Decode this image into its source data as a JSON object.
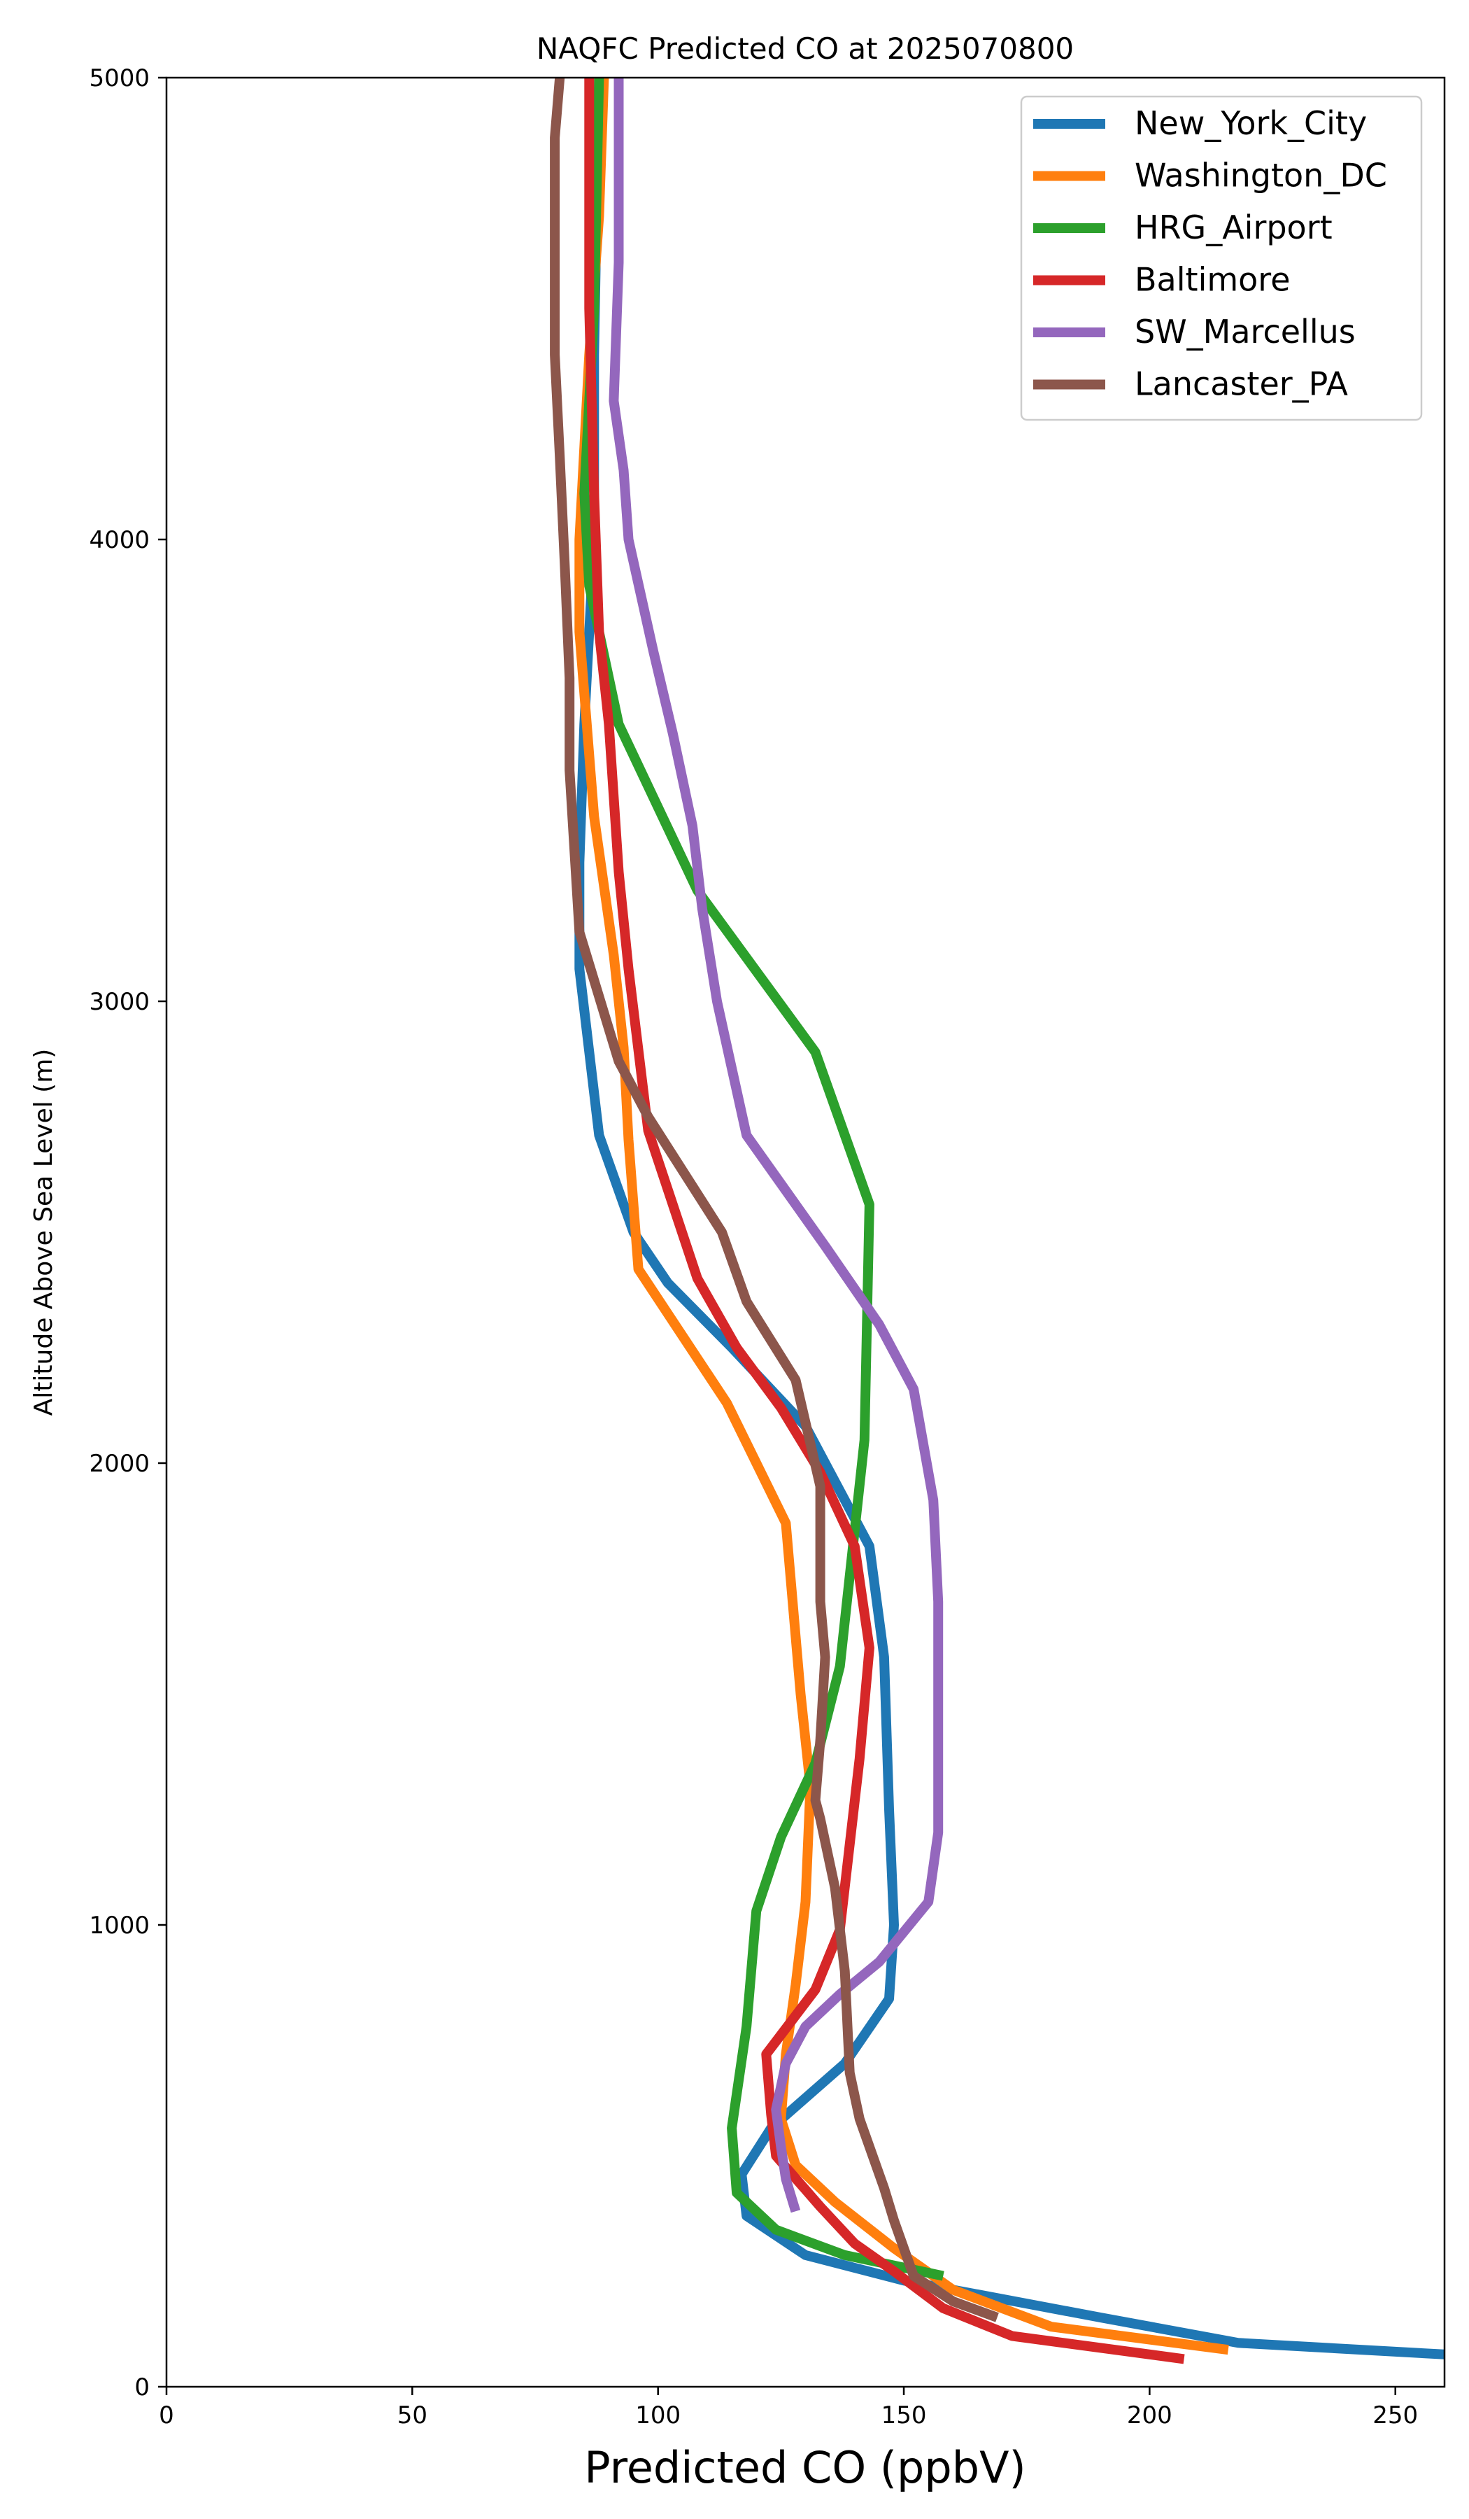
{
  "chart_data": {
    "type": "line",
    "title": "NAQFC Predicted CO at 2025070800",
    "xlabel": "Predicted CO (ppbV)",
    "ylabel": "Altitude Above Sea Level (m)",
    "xlim": [
      0,
      260
    ],
    "ylim": [
      0,
      5000
    ],
    "xticks": [
      "0",
      "50",
      "100",
      "150",
      "200",
      "250"
    ],
    "yticks": [
      "0",
      "1000",
      "2000",
      "3000",
      "4000",
      "5000"
    ],
    "grid": false,
    "legend_position": "top-right",
    "series": [
      {
        "name": "New_York_City",
        "color": "#1f77b4",
        "points": [
          [
            260,
            70
          ],
          [
            218,
            95
          ],
          [
            190,
            150
          ],
          [
            150,
            230
          ],
          [
            130,
            285
          ],
          [
            118,
            370
          ],
          [
            117,
            460
          ],
          [
            123,
            560
          ],
          [
            138,
            700
          ],
          [
            147,
            840
          ],
          [
            148,
            1000
          ],
          [
            147,
            1250
          ],
          [
            146,
            1580
          ],
          [
            143,
            1820
          ],
          [
            130,
            2080
          ],
          [
            115,
            2250
          ],
          [
            102,
            2390
          ],
          [
            95,
            2500
          ],
          [
            88,
            2710
          ],
          [
            84,
            3070
          ],
          [
            84,
            3300
          ],
          [
            85,
            3600
          ],
          [
            87,
            4000
          ],
          [
            87,
            4400
          ],
          [
            88,
            5000
          ]
        ]
      },
      {
        "name": "Washington_DC",
        "color": "#ff7f0e",
        "points": [
          [
            216,
            80
          ],
          [
            180,
            130
          ],
          [
            160,
            210
          ],
          [
            148,
            300
          ],
          [
            136,
            400
          ],
          [
            128,
            480
          ],
          [
            125,
            580
          ],
          [
            126,
            720
          ],
          [
            128,
            870
          ],
          [
            130,
            1050
          ],
          [
            131,
            1300
          ],
          [
            129,
            1500
          ],
          [
            126,
            1870
          ],
          [
            114,
            2130
          ],
          [
            96,
            2420
          ],
          [
            94,
            2700
          ],
          [
            93,
            2900
          ],
          [
            91,
            3100
          ],
          [
            87,
            3400
          ],
          [
            84,
            3800
          ],
          [
            84,
            4000
          ],
          [
            86,
            4400
          ],
          [
            88,
            4700
          ],
          [
            89,
            5000
          ]
        ]
      },
      {
        "name": "HRG_Airport",
        "color": "#2ca02c",
        "points": [
          [
            158,
            240
          ],
          [
            138,
            285
          ],
          [
            124,
            340
          ],
          [
            116,
            420
          ],
          [
            115,
            560
          ],
          [
            118,
            780
          ],
          [
            120,
            1030
          ],
          [
            125,
            1190
          ],
          [
            132,
            1350
          ],
          [
            137,
            1560
          ],
          [
            142,
            2050
          ],
          [
            143,
            2560
          ],
          [
            132,
            2890
          ],
          [
            108,
            3240
          ],
          [
            92,
            3600
          ],
          [
            86,
            3900
          ],
          [
            85,
            4100
          ],
          [
            87,
            4500
          ],
          [
            88,
            5000
          ]
        ]
      },
      {
        "name": "Baltimore",
        "color": "#d62728",
        "points": [
          [
            207,
            60
          ],
          [
            172,
            110
          ],
          [
            158,
            170
          ],
          [
            148,
            250
          ],
          [
            140,
            310
          ],
          [
            133,
            390
          ],
          [
            124,
            500
          ],
          [
            123,
            590
          ],
          [
            122,
            720
          ],
          [
            132,
            860
          ],
          [
            137,
            990
          ],
          [
            141,
            1360
          ],
          [
            143,
            1600
          ],
          [
            140,
            1820
          ],
          [
            133,
            1980
          ],
          [
            125,
            2120
          ],
          [
            116,
            2250
          ],
          [
            108,
            2400
          ],
          [
            98,
            2720
          ],
          [
            94,
            3070
          ],
          [
            92,
            3280
          ],
          [
            90,
            3600
          ],
          [
            88,
            3800
          ],
          [
            87,
            4100
          ],
          [
            86,
            4500
          ],
          [
            86,
            5000
          ]
        ]
      },
      {
        "name": "SW_Marcellus",
        "color": "#9467bd",
        "points": [
          [
            128,
            380
          ],
          [
            126,
            450
          ],
          [
            125,
            520
          ],
          [
            124,
            600
          ],
          [
            125,
            650
          ],
          [
            126,
            700
          ],
          [
            130,
            780
          ],
          [
            137,
            850
          ],
          [
            145,
            920
          ],
          [
            155,
            1050
          ],
          [
            157,
            1200
          ],
          [
            157,
            1350
          ],
          [
            157,
            1500
          ],
          [
            157,
            1700
          ],
          [
            156,
            1920
          ],
          [
            152,
            2160
          ],
          [
            145,
            2300
          ],
          [
            134,
            2470
          ],
          [
            118,
            2710
          ],
          [
            112,
            3000
          ],
          [
            109,
            3200
          ],
          [
            107,
            3380
          ],
          [
            103,
            3580
          ],
          [
            99,
            3760
          ],
          [
            94,
            4000
          ],
          [
            93,
            4150
          ],
          [
            91,
            4300
          ],
          [
            92,
            4600
          ],
          [
            92,
            5000
          ]
        ]
      },
      {
        "name": "Lancaster_PA",
        "color": "#8c564b",
        "points": [
          [
            169,
            150
          ],
          [
            160,
            185
          ],
          [
            152,
            240
          ],
          [
            148,
            360
          ],
          [
            146,
            430
          ],
          [
            141,
            580
          ],
          [
            139,
            680
          ],
          [
            138,
            900
          ],
          [
            136,
            1080
          ],
          [
            133,
            1230
          ],
          [
            132,
            1270
          ],
          [
            133,
            1400
          ],
          [
            134,
            1580
          ],
          [
            133,
            1700
          ],
          [
            133,
            1950
          ],
          [
            128,
            2180
          ],
          [
            118,
            2350
          ],
          [
            113,
            2500
          ],
          [
            98,
            2750
          ],
          [
            92,
            2870
          ],
          [
            84,
            3150
          ],
          [
            82,
            3500
          ],
          [
            82,
            3700
          ],
          [
            81,
            3950
          ],
          [
            80,
            4180
          ],
          [
            79,
            4400
          ],
          [
            79,
            4600
          ],
          [
            79,
            4870
          ],
          [
            80,
            5000
          ]
        ]
      }
    ]
  }
}
